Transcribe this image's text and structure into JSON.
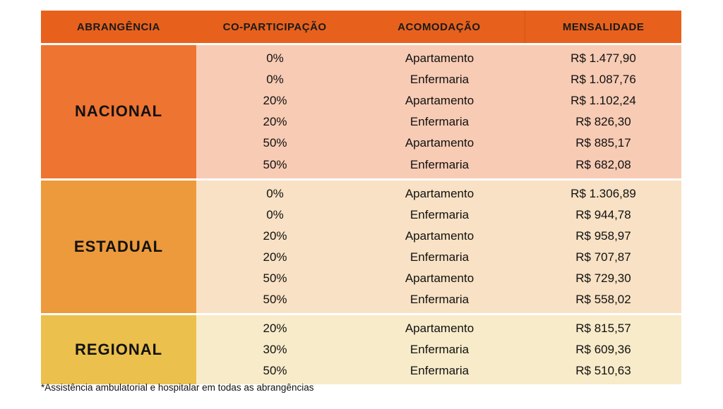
{
  "header": {
    "abrangencia": "ABRANGÊNCIA",
    "coparticipacao": "CO-PARTICIPAÇÃO",
    "acomodacao": "ACOMODAÇÃO",
    "mensalidade": "MENSALIDADE"
  },
  "groups": {
    "nacional": {
      "label": "NACIONAL",
      "rows": [
        {
          "cop": "0%",
          "acom": "Apartamento",
          "mens": "R$ 1.477,90"
        },
        {
          "cop": "0%",
          "acom": "Enfermaria",
          "mens": "R$ 1.087,76"
        },
        {
          "cop": "20%",
          "acom": "Apartamento",
          "mens": "R$ 1.102,24"
        },
        {
          "cop": "20%",
          "acom": "Enfermaria",
          "mens": "R$ 826,30"
        },
        {
          "cop": "50%",
          "acom": "Apartamento",
          "mens": "R$ 885,17"
        },
        {
          "cop": "50%",
          "acom": "Enfermaria",
          "mens": "R$ 682,08"
        }
      ]
    },
    "estadual": {
      "label": "ESTADUAL",
      "rows": [
        {
          "cop": "0%",
          "acom": "Apartamento",
          "mens": "R$ 1.306,89"
        },
        {
          "cop": "0%",
          "acom": "Enfermaria",
          "mens": "R$ 944,78"
        },
        {
          "cop": "20%",
          "acom": "Apartamento",
          "mens": "R$ 958,97"
        },
        {
          "cop": "20%",
          "acom": "Enfermaria",
          "mens": "R$ 707,87"
        },
        {
          "cop": "50%",
          "acom": "Apartamento",
          "mens": "R$ 729,30"
        },
        {
          "cop": "50%",
          "acom": "Enfermaria",
          "mens": "R$ 558,02"
        }
      ]
    },
    "regional": {
      "label": "REGIONAL",
      "rows": [
        {
          "cop": "20%",
          "acom": "Apartamento",
          "mens": "R$ 815,57"
        },
        {
          "cop": "30%",
          "acom": "Enfermaria",
          "mens": "R$ 609,36"
        },
        {
          "cop": "50%",
          "acom": "Enfermaria",
          "mens": "R$ 510,63"
        }
      ]
    }
  },
  "footnote": "*Assistência ambulatorial e hospitalar em todas as abrangências",
  "colors": {
    "header": "#e8611c",
    "nacional_label": "#ee7431",
    "nacional_rows": "#f7cbb4",
    "estadual_label": "#ec9a3b",
    "estadual_rows": "#f8e1c4",
    "regional_label": "#ebc04c",
    "regional_rows": "#f8ebc9"
  }
}
